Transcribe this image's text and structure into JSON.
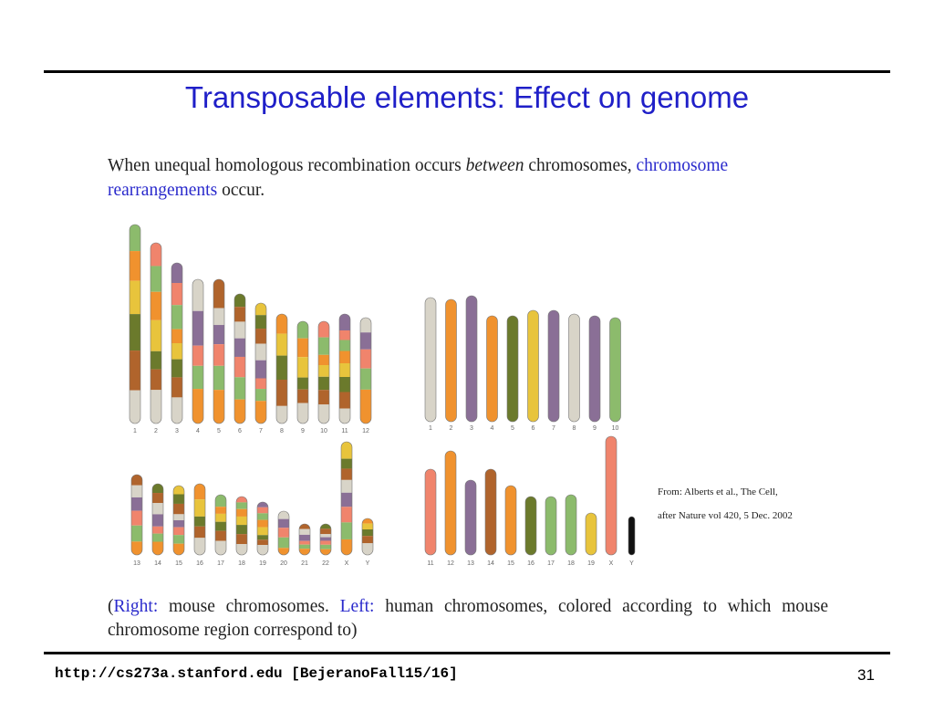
{
  "slide": {
    "title": "Transposable elements: Effect on genome",
    "intro": {
      "part1": "When unequal homologous recombination occurs ",
      "part2_italic": "between",
      "part3": " chromosomes, ",
      "part4_highlight": "chromosome rearrangements",
      "part5": " occur."
    },
    "figure": {
      "left_panel_labels_top": [
        "1",
        "2",
        "3",
        "4",
        "5",
        "6",
        "7",
        "8",
        "9",
        "10",
        "11",
        "12"
      ],
      "left_panel_labels_bottom": [
        "13",
        "14",
        "15",
        "16",
        "17",
        "18",
        "19",
        "20",
        "21",
        "22",
        "X",
        "Y"
      ],
      "right_panel_labels_top": [
        "1",
        "2",
        "3",
        "4",
        "5",
        "6",
        "7",
        "8",
        "9",
        "10"
      ],
      "right_panel_labels_bottom": [
        "11",
        "12",
        "13",
        "14",
        "15",
        "16",
        "17",
        "18",
        "19",
        "X",
        "Y"
      ],
      "source_line1": "From: Alberts et al., The Cell,",
      "source_line2": "after Nature vol 420, 5 Dec. 2002"
    },
    "caption": {
      "p1": "(",
      "p2_highlight": "Right:",
      "p3": " mouse chromosomes. ",
      "p4_highlight": "Left:",
      "p5": " human chromosomes, colored according to which mouse chromosome region correspond to)"
    },
    "footer_url": "http://cs273a.stanford.edu [BejeranoFall15/16]",
    "slide_number": "31"
  },
  "colors": {
    "title": "#1f1fc8",
    "highlight": "#2a2acc",
    "orange": "#f0922e",
    "purple": "#8a6f96",
    "olive": "#6b7a2c",
    "green": "#8cbb6c",
    "gray": "#d8d4c8",
    "yellow": "#e8c43c",
    "salmon": "#f0846c",
    "brown": "#b0642c"
  }
}
